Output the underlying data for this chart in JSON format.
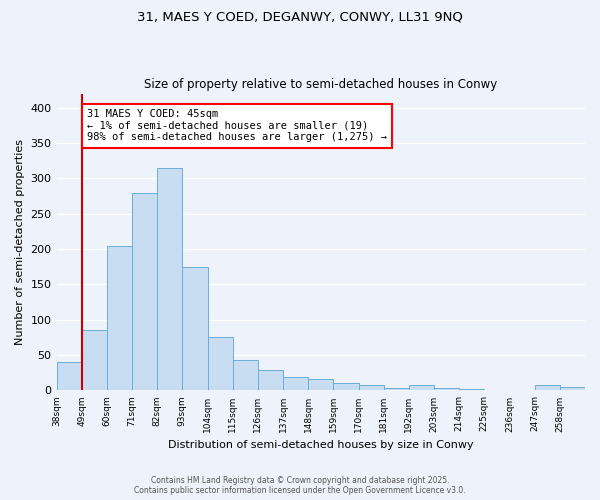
{
  "title1": "31, MAES Y COED, DEGANWY, CONWY, LL31 9NQ",
  "title2": "Size of property relative to semi-detached houses in Conwy",
  "xlabel": "Distribution of semi-detached houses by size in Conwy",
  "ylabel": "Number of semi-detached properties",
  "bin_labels": [
    "38sqm",
    "49sqm",
    "60sqm",
    "71sqm",
    "82sqm",
    "93sqm",
    "104sqm",
    "115sqm",
    "126sqm",
    "137sqm",
    "148sqm",
    "159sqm",
    "170sqm",
    "181sqm",
    "192sqm",
    "203sqm",
    "214sqm",
    "225sqm",
    "236sqm",
    "247sqm",
    "258sqm"
  ],
  "bar_heights": [
    40,
    86,
    204,
    280,
    315,
    174,
    75,
    43,
    29,
    19,
    16,
    11,
    8,
    3,
    8,
    3,
    2,
    0,
    1,
    7,
    5
  ],
  "bar_color": "#c9ddf2",
  "bar_edge_color": "#6aaed6",
  "marker_line_color": "#cc0000",
  "ylim": [
    0,
    420
  ],
  "yticks": [
    0,
    50,
    100,
    150,
    200,
    250,
    300,
    350,
    400
  ],
  "annotation_title": "31 MAES Y COED: 45sqm",
  "annotation_line1": "← 1% of semi-detached houses are smaller (19)",
  "annotation_line2": "98% of semi-detached houses are larger (1,275) →",
  "footnote1": "Contains HM Land Registry data © Crown copyright and database right 2025.",
  "footnote2": "Contains public sector information licensed under the Open Government Licence v3.0.",
  "bg_color": "#eef2fa",
  "plot_bg_color": "#eef2fa",
  "grid_color": "#ffffff"
}
